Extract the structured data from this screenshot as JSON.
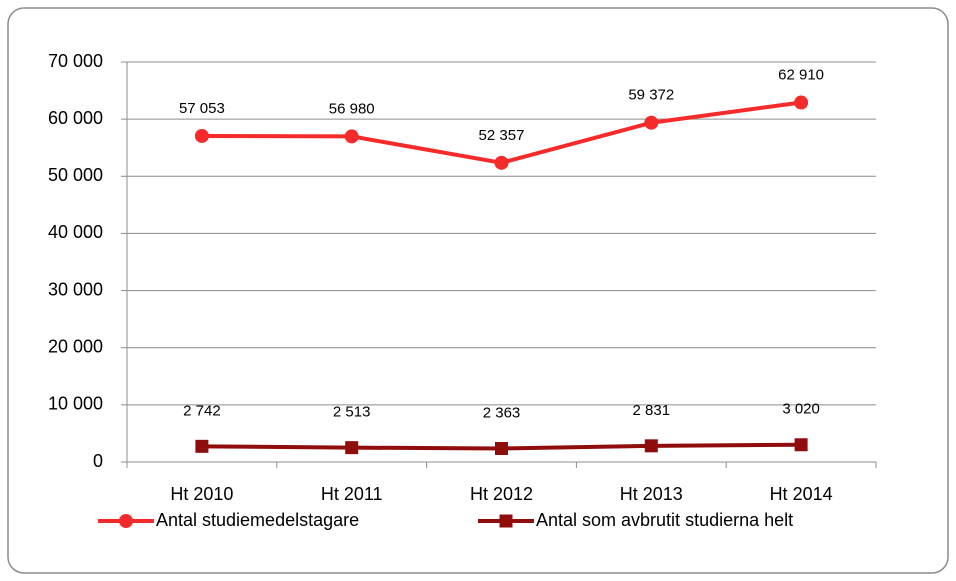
{
  "chart_data": {
    "type": "line",
    "categories": [
      "Ht 2010",
      "Ht 2011",
      "Ht 2012",
      "Ht 2013",
      "Ht 2014"
    ],
    "series": [
      {
        "name": "Antal studiemedelstagare",
        "color": "#f52a2a",
        "marker": "circle",
        "values": [
          57053,
          56980,
          52357,
          59372,
          62910
        ],
        "value_labels": [
          "57 053",
          "56 980",
          "52 357",
          "59 372",
          "62 910"
        ]
      },
      {
        "name": "Antal som avbrutit studierna helt",
        "color": "#8f0d0d",
        "marker": "square",
        "values": [
          2742,
          2513,
          2363,
          2831,
          3020
        ],
        "value_labels": [
          "2 742",
          "2 513",
          "2 363",
          "2 831",
          "3 020"
        ]
      }
    ],
    "ylim": [
      0,
      70000
    ],
    "yticks": [
      0,
      {
        "value": 10000,
        "label": "10 000"
      },
      {
        "value": 20000,
        "label": "20 000"
      },
      {
        "value": 30000,
        "label": "30 000"
      },
      {
        "value": 40000,
        "label": "40 000"
      },
      {
        "value": 50000,
        "label": "50 000"
      },
      {
        "value": 60000,
        "label": "60 000"
      },
      {
        "value": 70000,
        "label": "70 000"
      }
    ],
    "grid": true,
    "legend": "bottom"
  }
}
